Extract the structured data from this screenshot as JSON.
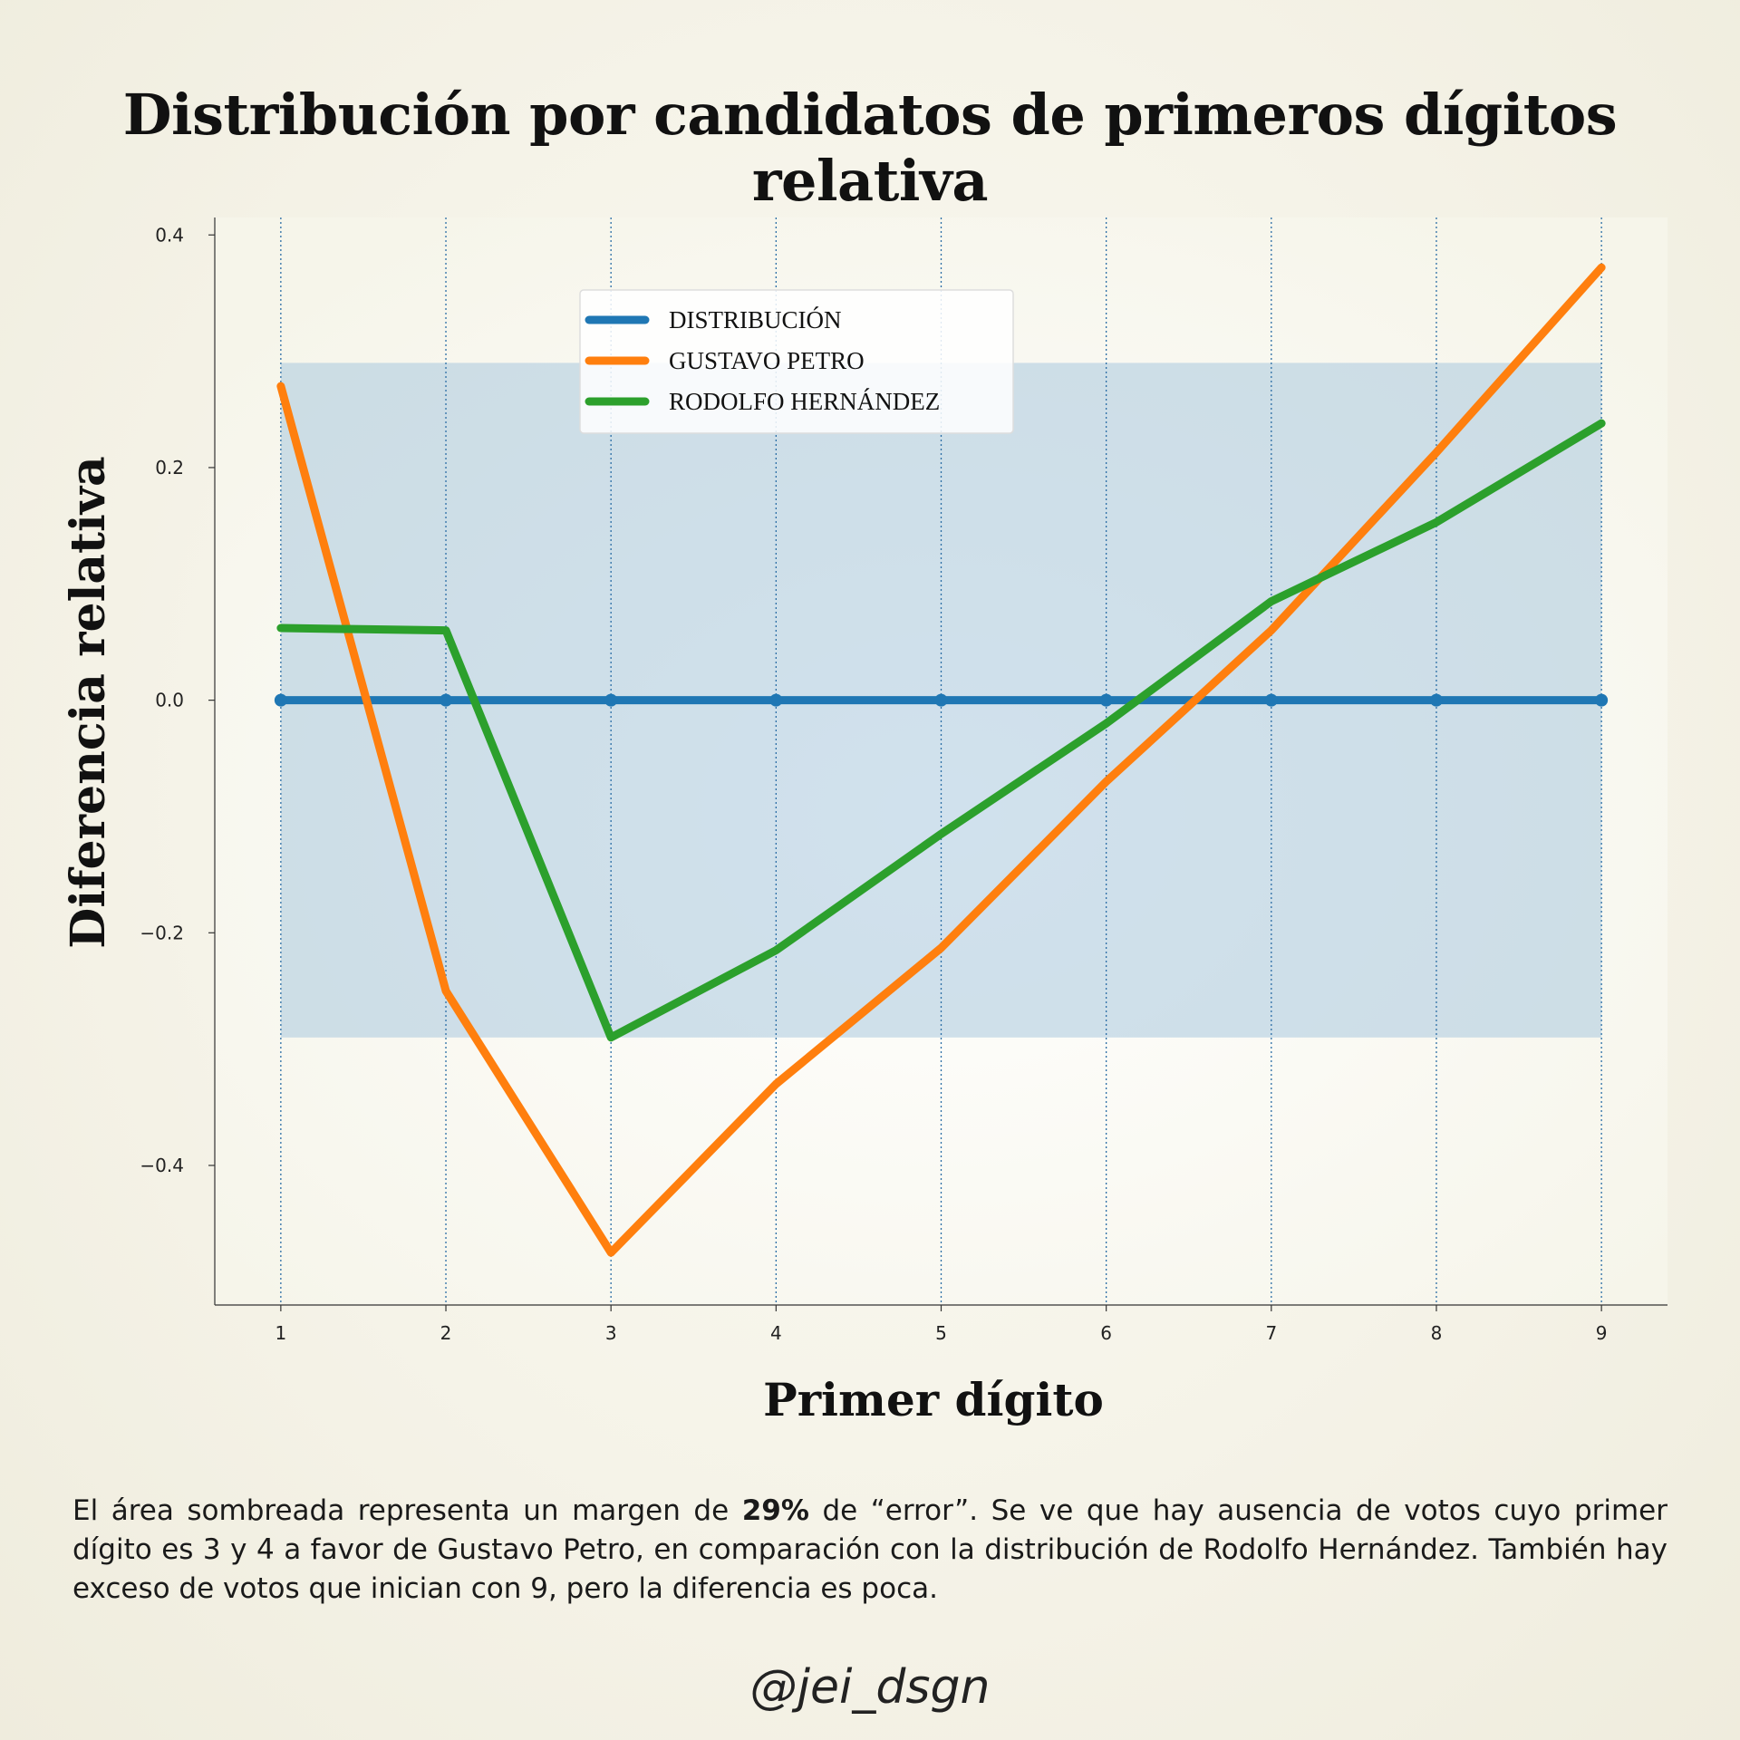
{
  "chart_data": {
    "type": "line",
    "title": "Distribución por candidatos de primeros dígitos relativa",
    "xlabel": "Primer dígito",
    "ylabel": "Diferencia relativa",
    "x": [
      1,
      2,
      3,
      4,
      5,
      6,
      7,
      8,
      9
    ],
    "xlim": [
      0.6,
      9.4
    ],
    "ylim": [
      -0.52,
      0.415
    ],
    "yticks": [
      0.4,
      0.2,
      0.0,
      -0.2,
      -0.4
    ],
    "ytick_labels": [
      "0.4",
      "0.2",
      "0.0",
      "−0.2",
      "−0.4"
    ],
    "xtick_labels": [
      "1",
      "2",
      "3",
      "4",
      "5",
      "6",
      "7",
      "8",
      "9"
    ],
    "shaded_band": [
      -0.29,
      0.29
    ],
    "vertical_gridlines": true,
    "legend_position": "top-center",
    "series": [
      {
        "name": "DISTRIBUCIÓN",
        "color": "#1f77b4",
        "values": [
          0,
          0,
          0,
          0,
          0,
          0,
          0,
          0,
          0
        ],
        "markers": true
      },
      {
        "name": "GUSTAVO PETRO",
        "color": "#ff7f0e",
        "values": [
          0.27,
          -0.25,
          -0.475,
          -0.33,
          -0.213,
          -0.07,
          0.06,
          0.213,
          0.372
        ],
        "markers": false
      },
      {
        "name": "RODOLFO HERNÁNDEZ",
        "color": "#2ca02c",
        "values": [
          0.062,
          0.06,
          -0.29,
          -0.215,
          -0.115,
          -0.02,
          0.085,
          0.153,
          0.238
        ],
        "markers": false
      }
    ]
  },
  "caption": {
    "part1": "El área sombreada representa un margen de ",
    "bold": "29%",
    "part2": " de “error”. Se ve que hay ausencia de votos cuyo primer dígito es 3 y 4 a favor de Gustavo Petro, en comparación con la distribución de Rodolfo Hernández. También hay exceso de votos que inician con 9, pero la diferencia es poca."
  },
  "signature": "@jei_dsgn"
}
